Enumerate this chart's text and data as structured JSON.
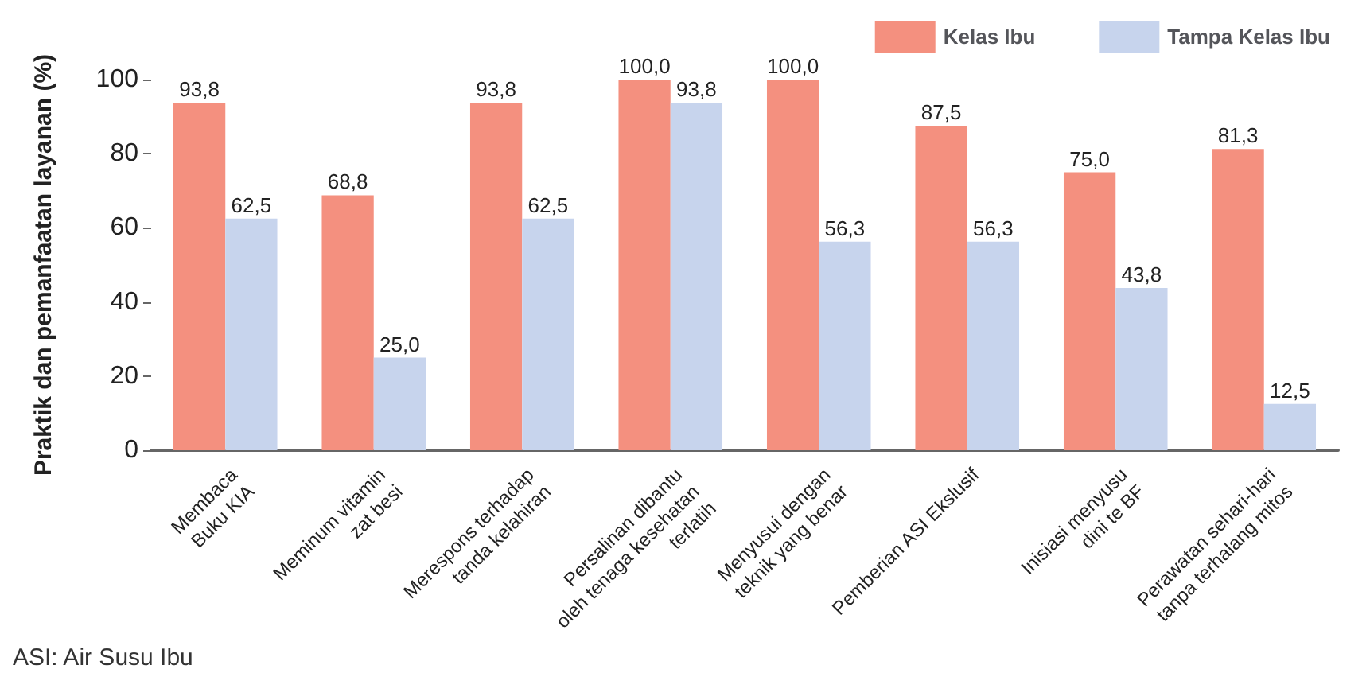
{
  "chart_data": {
    "type": "bar",
    "ylabel": "Praktik dan pemanfaatan layanan (%)",
    "categories": [
      "Membaca\nBuku KIA",
      "Meminum vitamin\nzat besi",
      "Merespons terhadap\ntanda kelahiran",
      "Persalinan dibantu\noleh tenaga kesehatan\nterlatih",
      "Menyusui dengan\nteknik yang benar",
      "Pemberian ASI Ekslusif",
      "Inisiasi menyusu\ndini te BF",
      "Perawatan sehari-hari\ntanpa terhalang mitos"
    ],
    "series": [
      {
        "name": "Kelas Ibu",
        "color": "#f4907f",
        "values": [
          93.8,
          68.8,
          93.8,
          100.0,
          100.0,
          87.5,
          75.0,
          81.3
        ],
        "value_labels": [
          "93,8",
          "68,8",
          "93,8",
          "100,0",
          "100,0",
          "87,5",
          "75,0",
          "81,3"
        ]
      },
      {
        "name": "Tampa Kelas Ibu",
        "color": "#c7d4ed",
        "values": [
          62.5,
          25.0,
          62.5,
          93.8,
          56.3,
          56.3,
          43.8,
          12.5
        ],
        "value_labels": [
          "62,5",
          "25,0",
          "62,5",
          "93,8",
          "56,3",
          "56,3",
          "43,8",
          "12,5"
        ]
      }
    ],
    "ylim": [
      0,
      100
    ],
    "yticks": [
      0,
      20,
      40,
      60,
      80,
      100
    ],
    "grid": false,
    "legend": "top right",
    "annotations": [
      "ASI: Air Susu Ibu"
    ]
  }
}
